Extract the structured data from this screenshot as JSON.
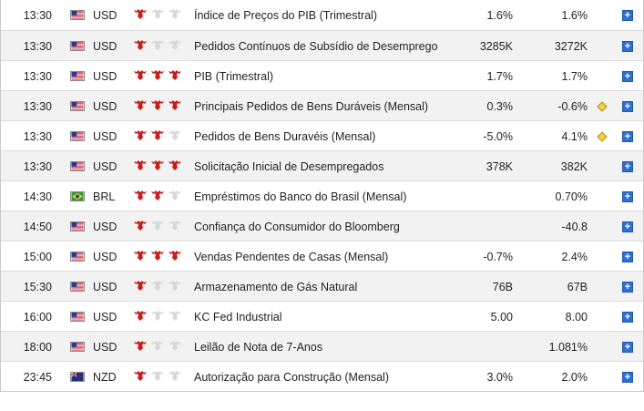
{
  "rows": [
    {
      "time": "13:30",
      "currency": "USD",
      "flag": "us-flag",
      "importance": 1,
      "event": "Índice de Preços do PIB (Trimestral)",
      "actual": "1.6%",
      "forecast": "1.6%",
      "revision_marker": false
    },
    {
      "time": "13:30",
      "currency": "USD",
      "flag": "us-flag",
      "importance": 1,
      "event": "Pedidos Contínuos de Subsídio de Desemprego",
      "actual": "3285K",
      "forecast": "3272K",
      "revision_marker": false
    },
    {
      "time": "13:30",
      "currency": "USD",
      "flag": "us-flag",
      "importance": 3,
      "event": "PIB (Trimestral)",
      "actual": "1.7%",
      "forecast": "1.7%",
      "revision_marker": false
    },
    {
      "time": "13:30",
      "currency": "USD",
      "flag": "us-flag",
      "importance": 3,
      "event": "Principais Pedidos de Bens Duráveis (Mensal)",
      "actual": "0.3%",
      "forecast": "-0.6%",
      "revision_marker": true
    },
    {
      "time": "13:30",
      "currency": "USD",
      "flag": "us-flag",
      "importance": 2,
      "event": "Pedidos de Bens Duravéis (Mensal)",
      "actual": "-5.0%",
      "forecast": "4.1%",
      "revision_marker": true
    },
    {
      "time": "13:30",
      "currency": "USD",
      "flag": "us-flag",
      "importance": 3,
      "event": "Solicitação Inicial de Desempregados",
      "actual": "378K",
      "forecast": "382K",
      "revision_marker": false
    },
    {
      "time": "14:30",
      "currency": "BRL",
      "flag": "br-flag",
      "importance": 2,
      "event": "Empréstimos do Banco do Brasil (Mensal)",
      "actual": "",
      "forecast": "0.70%",
      "revision_marker": false
    },
    {
      "time": "14:50",
      "currency": "USD",
      "flag": "us-flag",
      "importance": 1,
      "event": "Confiança do Consumidor do Bloomberg",
      "actual": "",
      "forecast": "-40.8",
      "revision_marker": false
    },
    {
      "time": "15:00",
      "currency": "USD",
      "flag": "us-flag",
      "importance": 3,
      "event": "Vendas Pendentes de Casas (Mensal)",
      "actual": "-0.7%",
      "forecast": "2.4%",
      "revision_marker": false
    },
    {
      "time": "15:30",
      "currency": "USD",
      "flag": "us-flag",
      "importance": 1,
      "event": "Armazenamento de Gás Natural",
      "actual": "76B",
      "forecast": "67B",
      "revision_marker": false
    },
    {
      "time": "16:00",
      "currency": "USD",
      "flag": "us-flag",
      "importance": 1,
      "event": "KC Fed Industrial",
      "actual": "5.00",
      "forecast": "8.00",
      "revision_marker": false
    },
    {
      "time": "18:00",
      "currency": "USD",
      "flag": "us-flag",
      "importance": 1,
      "event": "Leilão de Nota de 7-Anos",
      "actual": "",
      "forecast": "1.081%",
      "revision_marker": false
    },
    {
      "time": "23:45",
      "currency": "NZD",
      "flag": "nz-flag",
      "importance": 1,
      "event": "Autorização para Construção (Mensal)",
      "actual": "3.0%",
      "forecast": "2.0%",
      "revision_marker": false
    }
  ],
  "colors": {
    "bull_active": "#cc1b1b",
    "bull_inactive": "#d8d8d8",
    "plus_button": "#2f6fd1",
    "diamond": "#f3d04a"
  },
  "plus_label": "+"
}
